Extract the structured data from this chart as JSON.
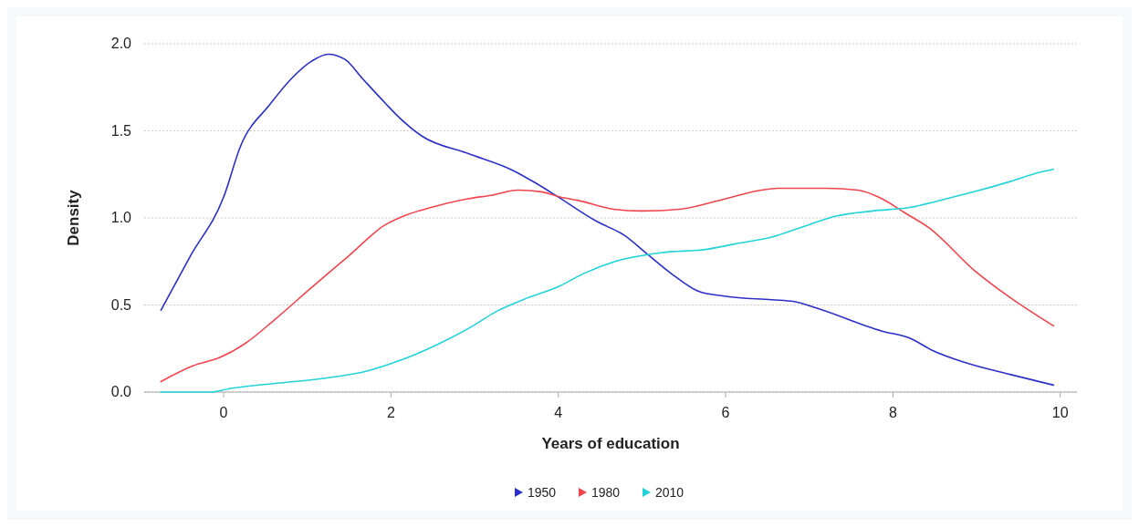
{
  "chart_data": {
    "type": "line",
    "xlabel": "Years of education",
    "ylabel": "Density",
    "xlim": [
      -0.95,
      10.2
    ],
    "xticks": [
      0,
      2,
      4,
      6,
      8,
      10
    ],
    "ylim": [
      0,
      2
    ],
    "yticks": [
      {
        "value": 0,
        "label": "0.0"
      },
      {
        "value": 0.5,
        "label": "0.5"
      },
      {
        "value": 1,
        "label": "1.0"
      },
      {
        "value": 1.5,
        "label": "1.5"
      },
      {
        "value": 2,
        "label": "2.0"
      }
    ],
    "grid": "y",
    "legend": "bottom",
    "line_style": "solid",
    "series": [
      {
        "name": "1950",
        "color": "#2b2fc7",
        "x": [
          -0.75,
          -0.4,
          0,
          0.2,
          0.55,
          0.81,
          1.05,
          1.25,
          1.45,
          1.66,
          1.93,
          2.07,
          2.37,
          2.92,
          3.47,
          3.73,
          4.0,
          4.46,
          4.79,
          5.07,
          5.38,
          5.67,
          6.0,
          6.55,
          6.82,
          7.1,
          7.87,
          8.2,
          8.47,
          8.86,
          9.41,
          9.92
        ],
        "values": [
          0.47,
          0.78,
          1.12,
          1.41,
          1.65,
          1.8,
          1.9,
          1.94,
          1.91,
          1.8,
          1.66,
          1.59,
          1.47,
          1.37,
          1.27,
          1.2,
          1.12,
          0.98,
          0.9,
          0.79,
          0.67,
          0.58,
          0.55,
          0.53,
          0.52,
          0.48,
          0.35,
          0.31,
          0.24,
          0.17,
          0.1,
          0.04
        ]
      },
      {
        "name": "1980",
        "color": "#f0454f",
        "x": [
          -0.75,
          -0.37,
          -0.04,
          0.26,
          0.62,
          1.05,
          1.49,
          1.93,
          2.2,
          2.48,
          2.92,
          3.2,
          3.52,
          3.8,
          4.02,
          4.24,
          4.66,
          5.0,
          5.45,
          6.0,
          6.43,
          6.63,
          7.2,
          7.58,
          7.87,
          8.14,
          8.44,
          8.97,
          9.41,
          9.92
        ],
        "values": [
          0.06,
          0.15,
          0.2,
          0.28,
          0.42,
          0.6,
          0.78,
          0.96,
          1.02,
          1.06,
          1.11,
          1.13,
          1.16,
          1.15,
          1.12,
          1.1,
          1.05,
          1.04,
          1.05,
          1.11,
          1.16,
          1.17,
          1.17,
          1.16,
          1.11,
          1.03,
          0.94,
          0.7,
          0.54,
          0.38
        ]
      },
      {
        "name": "2010",
        "color": "#22d3d8",
        "x": [
          -0.75,
          -0.15,
          0.07,
          0.62,
          1.22,
          1.71,
          2.1,
          2.54,
          2.98,
          3.25,
          3.58,
          4.02,
          4.3,
          4.68,
          5.23,
          5.78,
          6.11,
          6.55,
          6.99,
          7.32,
          7.76,
          8.2,
          8.64,
          8.97,
          9.41,
          9.74,
          9.92
        ],
        "values": [
          0.0,
          0.0,
          0.02,
          0.05,
          0.08,
          0.12,
          0.18,
          0.27,
          0.38,
          0.46,
          0.53,
          0.61,
          0.68,
          0.75,
          0.8,
          0.82,
          0.85,
          0.89,
          0.96,
          1.01,
          1.04,
          1.06,
          1.11,
          1.15,
          1.21,
          1.26,
          1.28
        ]
      }
    ]
  }
}
